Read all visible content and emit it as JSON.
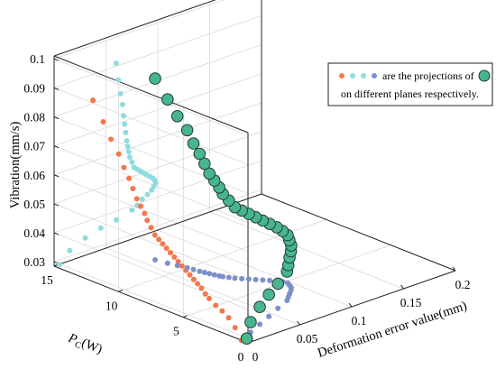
{
  "chart_data": {
    "type": "scatter",
    "dimensions": "3d",
    "grid": true,
    "legend_position": "top-right",
    "axes": {
      "z": {
        "label": "Vibration(mm/s)",
        "ticks": [
          "0.03",
          "0.04",
          "0.05",
          "0.06",
          "0.07",
          "0.08",
          "0.09",
          "0.1"
        ],
        "range": [
          0.0285,
          0.101
        ]
      },
      "x": {
        "label_main": "P",
        "label_sub": "C",
        "label_tail": "(W)",
        "ticks": [
          "0",
          "5",
          "10",
          "15"
        ],
        "range": [
          0,
          15
        ]
      },
      "y": {
        "label": "Deformation error value(mm)",
        "ticks": [
          "0",
          "0.05",
          "0.1",
          "0.15",
          "0.2"
        ],
        "range": [
          0,
          0.2
        ]
      }
    },
    "legend": {
      "line1": "are the projections of",
      "line2": "on different planes respectively."
    },
    "colors": {
      "orange": "#f4774b",
      "cyan": "#8edcde",
      "blue": "#7c8fcb",
      "green": "#48b58f",
      "green_edge": "#1e3d2c"
    },
    "series": [
      {
        "role": "3d-points",
        "points": [
          {
            "pc": 0.5,
            "def": 0.005,
            "vib": 0.0285
          },
          {
            "pc": 1.0,
            "def": 0.015,
            "vib": 0.032
          },
          {
            "pc": 1.5,
            "def": 0.03,
            "vib": 0.0345
          },
          {
            "pc": 2.0,
            "def": 0.045,
            "vib": 0.036
          },
          {
            "pc": 2.5,
            "def": 0.06,
            "vib": 0.037
          },
          {
            "pc": 3.0,
            "def": 0.075,
            "vib": 0.0385
          },
          {
            "pc": 3.3,
            "def": 0.08,
            "vib": 0.0395
          },
          {
            "pc": 3.6,
            "def": 0.085,
            "vib": 0.041
          },
          {
            "pc": 3.9,
            "def": 0.09,
            "vib": 0.042
          },
          {
            "pc": 4.2,
            "def": 0.094,
            "vib": 0.043
          },
          {
            "pc": 4.5,
            "def": 0.096,
            "vib": 0.044
          },
          {
            "pc": 4.8,
            "def": 0.098,
            "vib": 0.045
          },
          {
            "pc": 5.1,
            "def": 0.097,
            "vib": 0.046
          },
          {
            "pc": 5.4,
            "def": 0.095,
            "vib": 0.047
          },
          {
            "pc": 5.7,
            "def": 0.092,
            "vib": 0.048
          },
          {
            "pc": 6.0,
            "def": 0.089,
            "vib": 0.049
          },
          {
            "pc": 6.3,
            "def": 0.086,
            "vib": 0.05
          },
          {
            "pc": 6.6,
            "def": 0.083,
            "vib": 0.051
          },
          {
            "pc": 6.9,
            "def": 0.08,
            "vib": 0.052
          },
          {
            "pc": 7.2,
            "def": 0.077,
            "vib": 0.053
          },
          {
            "pc": 7.5,
            "def": 0.075,
            "vib": 0.055
          },
          {
            "pc": 7.8,
            "def": 0.073,
            "vib": 0.057
          },
          {
            "pc": 8.0,
            "def": 0.072,
            "vib": 0.059
          },
          {
            "pc": 8.3,
            "def": 0.071,
            "vib": 0.061
          },
          {
            "pc": 8.6,
            "def": 0.07,
            "vib": 0.063
          },
          {
            "pc": 8.9,
            "def": 0.069,
            "vib": 0.066
          },
          {
            "pc": 9.2,
            "def": 0.068,
            "vib": 0.069
          },
          {
            "pc": 9.6,
            "def": 0.067,
            "vib": 0.072
          },
          {
            "pc": 10.0,
            "def": 0.066,
            "vib": 0.076
          },
          {
            "pc": 10.6,
            "def": 0.064,
            "vib": 0.08
          },
          {
            "pc": 11.2,
            "def": 0.062,
            "vib": 0.085
          },
          {
            "pc": 12.0,
            "def": 0.06,
            "vib": 0.091
          }
        ]
      }
    ]
  }
}
